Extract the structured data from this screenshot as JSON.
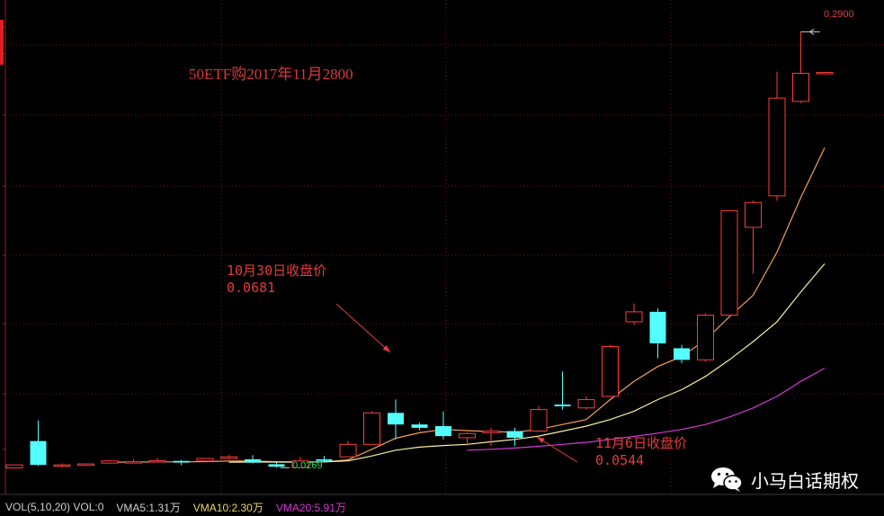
{
  "annotations": {
    "title": "50ETF购2017年11月2800",
    "note1_line1": "10月30日收盘价",
    "note1_line2": "0.0681",
    "note2_line1": "11月6日收盘价",
    "note2_line2": "0.0544",
    "high_label": "0.2900",
    "low_label": "0.0269"
  },
  "watermark": {
    "text": "小马白话期权",
    "icon": "wechat-icon"
  },
  "volume_bar": {
    "label": "VOL(5,10,20) VOL:0",
    "vma5": "VMA5:1.31万",
    "vma10": "VMA10:2.30万",
    "vma20": "VMA20:5.91万"
  },
  "colors": {
    "background": "#000000",
    "up": "#ff3c3c",
    "down": "#54ffff",
    "ma5": "#f2a058",
    "ma10": "#f5f0a0",
    "ma20": "#d43bd4",
    "grid": "#7a1515",
    "annotation": "#e23b3b"
  },
  "chart_data": {
    "type": "candlestick",
    "title": "50ETF购2017年11月2800",
    "ylim": [
      0.02,
      0.3
    ],
    "grid": true,
    "candles": [
      {
        "open": 0.0268,
        "close": 0.0286,
        "high": 0.0286,
        "low": 0.0268
      },
      {
        "open": 0.043,
        "close": 0.0286,
        "high": 0.0555,
        "low": 0.028
      },
      {
        "open": 0.0286,
        "close": 0.0286,
        "high": 0.0295,
        "low": 0.027
      },
      {
        "open": 0.0283,
        "close": 0.0292,
        "high": 0.0292,
        "low": 0.0283
      },
      {
        "open": 0.0297,
        "close": 0.031,
        "high": 0.0315,
        "low": 0.0295
      },
      {
        "open": 0.0305,
        "close": 0.0305,
        "high": 0.032,
        "low": 0.0295
      },
      {
        "open": 0.0305,
        "close": 0.0312,
        "high": 0.033,
        "low": 0.03
      },
      {
        "open": 0.031,
        "close": 0.03,
        "high": 0.0315,
        "low": 0.0285
      },
      {
        "open": 0.031,
        "close": 0.0325,
        "high": 0.0325,
        "low": 0.03
      },
      {
        "open": 0.0325,
        "close": 0.0335,
        "high": 0.0345,
        "low": 0.0318
      },
      {
        "open": 0.032,
        "close": 0.03,
        "high": 0.0345,
        "low": 0.0295
      },
      {
        "open": 0.029,
        "close": 0.0275,
        "high": 0.03,
        "low": 0.0269
      },
      {
        "open": 0.027,
        "close": 0.031,
        "high": 0.0335,
        "low": 0.0268
      },
      {
        "open": 0.032,
        "close": 0.031,
        "high": 0.034,
        "low": 0.0305
      },
      {
        "open": 0.0335,
        "close": 0.041,
        "high": 0.043,
        "low": 0.0335
      },
      {
        "open": 0.041,
        "close": 0.06,
        "high": 0.061,
        "low": 0.041
      },
      {
        "open": 0.06,
        "close": 0.053,
        "high": 0.0681,
        "low": 0.044
      },
      {
        "open": 0.053,
        "close": 0.051,
        "high": 0.054,
        "low": 0.0495
      },
      {
        "open": 0.052,
        "close": 0.046,
        "high": 0.061,
        "low": 0.044
      },
      {
        "open": 0.045,
        "close": 0.0475,
        "high": 0.048,
        "low": 0.04
      },
      {
        "open": 0.048,
        "close": 0.049,
        "high": 0.051,
        "low": 0.04
      },
      {
        "open": 0.049,
        "close": 0.045,
        "high": 0.051,
        "low": 0.04
      },
      {
        "open": 0.049,
        "close": 0.062,
        "high": 0.064,
        "low": 0.049
      },
      {
        "open": 0.065,
        "close": 0.064,
        "high": 0.085,
        "low": 0.062
      },
      {
        "open": 0.063,
        "close": 0.068,
        "high": 0.07,
        "low": 0.062
      },
      {
        "open": 0.07,
        "close": 0.1,
        "high": 0.101,
        "low": 0.07
      },
      {
        "open": 0.115,
        "close": 0.121,
        "high": 0.126,
        "low": 0.113
      },
      {
        "open": 0.121,
        "close": 0.102,
        "high": 0.123,
        "low": 0.093
      },
      {
        "open": 0.099,
        "close": 0.092,
        "high": 0.101,
        "low": 0.09
      },
      {
        "open": 0.092,
        "close": 0.119,
        "high": 0.12,
        "low": 0.091
      },
      {
        "open": 0.119,
        "close": 0.182,
        "high": 0.182,
        "low": 0.119
      },
      {
        "open": 0.172,
        "close": 0.187,
        "high": 0.188,
        "low": 0.144
      },
      {
        "open": 0.191,
        "close": 0.25,
        "high": 0.266,
        "low": 0.188
      },
      {
        "open": 0.248,
        "close": 0.265,
        "high": 0.29,
        "low": 0.247
      },
      {
        "open": 0.2655,
        "close": 0.2655,
        "high": 0.2655,
        "low": 0.2655
      }
    ],
    "ma5": [
      null,
      null,
      null,
      null,
      0.0302,
      0.0303,
      0.0304,
      0.0304,
      0.0306,
      0.0309,
      0.0309,
      0.0305,
      0.0303,
      0.0304,
      0.0316,
      0.038,
      0.0447,
      0.048,
      0.05,
      0.0493,
      0.0487,
      0.0483,
      0.05,
      0.053,
      0.056,
      0.068,
      0.079,
      0.088,
      0.094,
      0.104,
      0.118,
      0.131,
      0.157,
      0.19,
      0.22
    ],
    "ma10": [
      null,
      null,
      null,
      null,
      null,
      null,
      null,
      null,
      null,
      0.0302,
      0.0303,
      0.0303,
      0.0303,
      0.0304,
      0.031,
      0.034,
      0.0375,
      0.0393,
      0.0403,
      0.041,
      0.0425,
      0.044,
      0.046,
      0.049,
      0.052,
      0.056,
      0.061,
      0.068,
      0.074,
      0.082,
      0.092,
      0.103,
      0.115,
      0.133,
      0.15
    ],
    "ma20": [
      null,
      null,
      null,
      null,
      null,
      null,
      null,
      null,
      null,
      null,
      null,
      null,
      null,
      null,
      null,
      null,
      null,
      null,
      null,
      0.0375,
      0.038,
      0.0388,
      0.0398,
      0.041,
      0.0422,
      0.044,
      0.0458,
      0.0478,
      0.05,
      0.053,
      0.0575,
      0.063,
      0.07,
      0.079,
      0.087
    ]
  }
}
